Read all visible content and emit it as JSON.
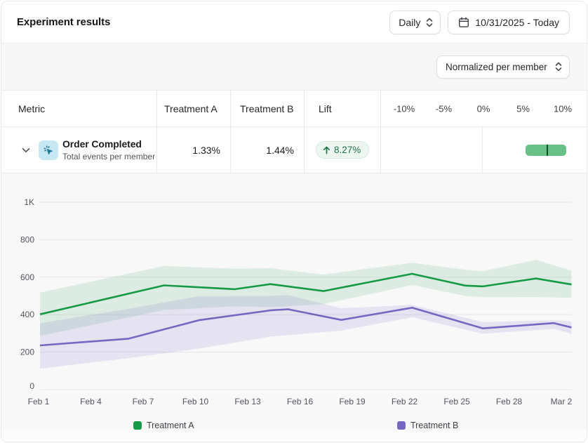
{
  "header": {
    "title": "Experiment results",
    "granularity_select": {
      "value": "Daily"
    },
    "date_range_button": {
      "label": "10/31/2025 - Today"
    }
  },
  "filter_bar": {
    "normalization_select": {
      "value": "Normalized per member"
    }
  },
  "results_table": {
    "columns": {
      "metric": "Metric",
      "treatment_a": "Treatment A",
      "treatment_b": "Treatment B",
      "lift": "Lift"
    },
    "lift_scale": {
      "tick_labels": [
        "-10%",
        "-5%",
        "0%",
        "5%",
        "10%"
      ],
      "tick_values": [
        -10,
        -5,
        0,
        5,
        10
      ]
    },
    "rows": [
      {
        "metric_name": "Order Completed",
        "metric_description": "Total events per member",
        "metric_icon": "cursor-click-icon",
        "treatment_a": "1.33%",
        "treatment_b": "1.44%",
        "lift_label": "8.27%",
        "lift_direction": "up",
        "lift_value_pct": 8.27,
        "lift_ci_low_pct": 5.5,
        "lift_ci_high_pct": 10.6
      }
    ]
  },
  "chart_data": {
    "type": "line",
    "x_tick_labels": [
      "Feb 1",
      "Feb 4",
      "Feb 7",
      "Feb 10",
      "Feb 13",
      "Feb 16",
      "Feb 19",
      "Feb 22",
      "Feb 25",
      "Feb 28",
      "Mar 2"
    ],
    "x_tick_days": [
      0,
      3,
      6,
      9,
      12,
      15,
      18,
      21,
      24,
      27,
      30
    ],
    "y_tick_labels": [
      "0",
      "200",
      "400",
      "600",
      "800",
      "1K"
    ],
    "y_tick_values": [
      0,
      200,
      400,
      600,
      800,
      1000
    ],
    "ylim": [
      0,
      1000
    ],
    "x_domain_days": 30,
    "grid": "horizontal",
    "legend_position": "bottom",
    "series": [
      {
        "name": "Treatment A",
        "color": "#169a46",
        "band_opacity": 0.12,
        "points": [
          {
            "day": 0,
            "date": "Feb 1",
            "value": 402,
            "ci_low": 287,
            "ci_high": 518
          },
          {
            "day": 7,
            "date": "Feb 8",
            "value": 556,
            "ci_low": 425,
            "ci_high": 660
          },
          {
            "day": 11,
            "date": "Feb 12",
            "value": 536,
            "ci_low": 445,
            "ci_high": 645
          },
          {
            "day": 13,
            "date": "Feb 14",
            "value": 563,
            "ci_low": 440,
            "ci_high": 648
          },
          {
            "day": 16,
            "date": "Feb 17",
            "value": 526,
            "ci_low": 456,
            "ci_high": 614
          },
          {
            "day": 21,
            "date": "Feb 22",
            "value": 618,
            "ci_low": 558,
            "ci_high": 677
          },
          {
            "day": 24,
            "date": "Feb 25",
            "value": 555,
            "ci_low": 500,
            "ci_high": 640
          },
          {
            "day": 25,
            "date": "Feb 26",
            "value": 551,
            "ci_low": 493,
            "ci_high": 632
          },
          {
            "day": 28,
            "date": "Feb 29",
            "value": 593,
            "ci_low": 494,
            "ci_high": 693
          },
          {
            "day": 30,
            "date": "Mar 2",
            "value": 561,
            "ci_low": 490,
            "ci_high": 635
          }
        ]
      },
      {
        "name": "Treatment B",
        "color": "#7668c2",
        "band_opacity": 0.15,
        "points": [
          {
            "day": 0,
            "date": "Feb 1",
            "value": 236,
            "ci_low": 112,
            "ci_high": 354
          },
          {
            "day": 5,
            "date": "Feb 6",
            "value": 272,
            "ci_low": 168,
            "ci_high": 432
          },
          {
            "day": 9,
            "date": "Feb 10",
            "value": 371,
            "ci_low": 220,
            "ci_high": 499
          },
          {
            "day": 13,
            "date": "Feb 14",
            "value": 423,
            "ci_low": 283,
            "ci_high": 500
          },
          {
            "day": 14,
            "date": "Feb 15",
            "value": 429,
            "ci_low": 291,
            "ci_high": 505
          },
          {
            "day": 17,
            "date": "Feb 18",
            "value": 372,
            "ci_low": 315,
            "ci_high": 434
          },
          {
            "day": 21,
            "date": "Feb 22",
            "value": 437,
            "ci_low": 386,
            "ci_high": 452
          },
          {
            "day": 25,
            "date": "Feb 26",
            "value": 327,
            "ci_low": 298,
            "ci_high": 360
          },
          {
            "day": 29,
            "date": "Mar 1",
            "value": 355,
            "ci_low": 324,
            "ci_high": 370
          },
          {
            "day": 30,
            "date": "Mar 2",
            "value": 332,
            "ci_low": 298,
            "ci_high": 365
          }
        ]
      }
    ],
    "legend": [
      "Treatment A",
      "Treatment B"
    ]
  },
  "colors": {
    "treatment_a": "#169a46",
    "treatment_b": "#7668c2",
    "lift_badge_bg": "#edf7f1",
    "lift_badge_text": "#1e7247",
    "lift_bar": "#68bf88",
    "lift_bar_tick": "#0c4f26",
    "chart_bg": "#f8f8f9",
    "gridline": "#e4e4e7",
    "axis_text": "#55555e"
  }
}
